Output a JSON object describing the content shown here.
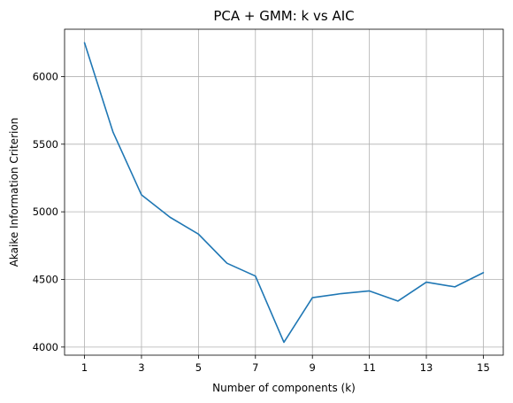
{
  "chart_data": {
    "type": "line",
    "title": "PCA + GMM: k vs AIC",
    "xlabel": "Number of components (k)",
    "ylabel": "Akaike Information Criterion",
    "xlim": [
      0.3,
      15.7
    ],
    "ylim": [
      3940,
      6350
    ],
    "xticks": [
      1,
      3,
      5,
      7,
      9,
      11,
      13,
      15
    ],
    "yticks": [
      4000,
      4500,
      5000,
      5500,
      6000
    ],
    "grid": true,
    "series": [
      {
        "color": "#1f77b4",
        "x": [
          1,
          2,
          3,
          4,
          5,
          6,
          7,
          8,
          9,
          10,
          11,
          12,
          13,
          14,
          15
        ],
        "y": [
          6250,
          5590,
          5125,
          4960,
          4835,
          4620,
          4525,
          4035,
          4365,
          4395,
          4415,
          4340,
          4480,
          4445,
          4550
        ]
      }
    ]
  }
}
